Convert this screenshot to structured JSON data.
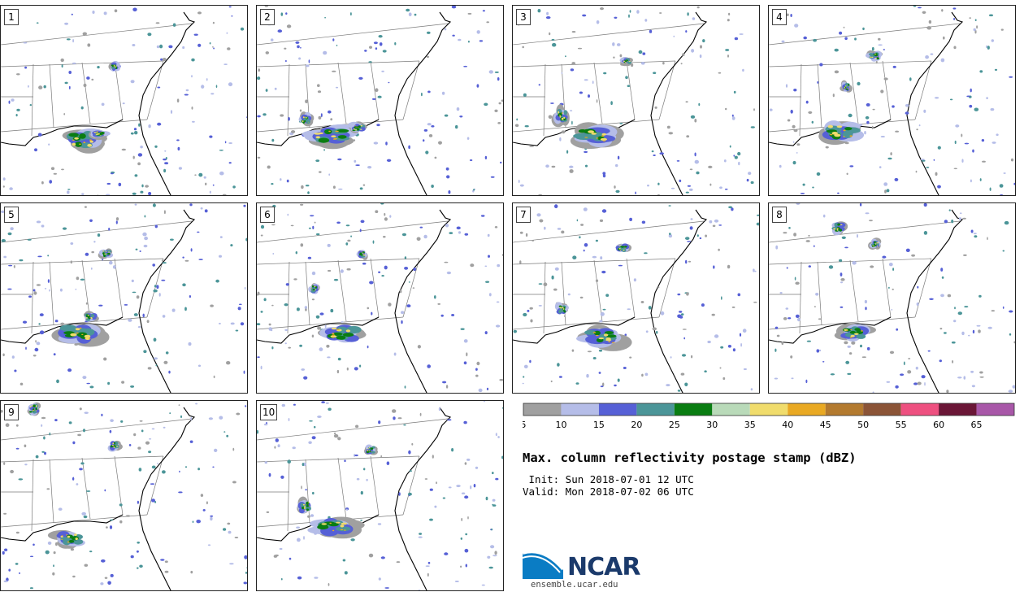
{
  "colors": {
    "background": "#ffffff",
    "state_lines": "#7a7a7a",
    "coast": "#000000",
    "scale": [
      "#a0a0a0",
      "#b5bde8",
      "#5660d6",
      "#4b9598",
      "#0a7d12",
      "#b9dab9",
      "#f0dc6c",
      "#e9a923",
      "#b37a2f",
      "#8b5437",
      "#ee5080",
      "#6a1636",
      "#a857a8"
    ]
  },
  "panels": [
    {
      "label": "1",
      "seed": 11,
      "clusters": [
        [
          100,
          165,
          34,
          18
        ],
        [
          122,
          158,
          16,
          8
        ],
        [
          140,
          75,
          8,
          8
        ]
      ]
    },
    {
      "label": "2",
      "seed": 23,
      "clusters": [
        [
          90,
          160,
          40,
          16
        ],
        [
          125,
          150,
          14,
          8
        ],
        [
          60,
          140,
          10,
          10
        ]
      ]
    },
    {
      "label": "3",
      "seed": 37,
      "clusters": [
        [
          100,
          160,
          38,
          16
        ],
        [
          140,
          68,
          10,
          6
        ],
        [
          60,
          135,
          12,
          14
        ]
      ]
    },
    {
      "label": "4",
      "seed": 41,
      "clusters": [
        [
          90,
          155,
          36,
          18
        ],
        [
          130,
          62,
          12,
          8
        ],
        [
          95,
          100,
          8,
          8
        ]
      ]
    },
    {
      "label": "5",
      "seed": 53,
      "clusters": [
        [
          95,
          160,
          36,
          18
        ],
        [
          130,
          62,
          10,
          8
        ],
        [
          110,
          140,
          12,
          8
        ]
      ]
    },
    {
      "label": "6",
      "seed": 67,
      "clusters": [
        [
          105,
          160,
          36,
          16
        ],
        [
          130,
          62,
          8,
          8
        ],
        [
          70,
          105,
          8,
          8
        ]
      ]
    },
    {
      "label": "7",
      "seed": 71,
      "clusters": [
        [
          110,
          165,
          36,
          16
        ],
        [
          135,
          55,
          12,
          8
        ],
        [
          60,
          130,
          10,
          10
        ]
      ]
    },
    {
      "label": "8",
      "seed": 89,
      "clusters": [
        [
          105,
          160,
          28,
          14
        ],
        [
          85,
          30,
          12,
          10
        ],
        [
          130,
          50,
          10,
          8
        ]
      ]
    },
    {
      "label": "9",
      "seed": 97,
      "clusters": [
        [
          85,
          170,
          26,
          14
        ],
        [
          40,
          10,
          10,
          10
        ],
        [
          140,
          55,
          10,
          8
        ]
      ]
    },
    {
      "label": "10",
      "seed": 103,
      "clusters": [
        [
          95,
          155,
          36,
          16
        ],
        [
          60,
          130,
          12,
          12
        ],
        [
          140,
          60,
          10,
          8
        ]
      ]
    }
  ],
  "colorbar": {
    "ticks": [
      "5",
      "10",
      "15",
      "20",
      "25",
      "30",
      "35",
      "40",
      "45",
      "50",
      "55",
      "60",
      "65"
    ]
  },
  "title": "Max. column reflectivity postage stamp (dBZ)",
  "init": " Init: Sun 2018-07-01 12 UTC",
  "valid": "Valid: Mon 2018-07-02 06 UTC",
  "logo": {
    "text": "NCAR",
    "url": "ensemble.ucar.edu"
  }
}
